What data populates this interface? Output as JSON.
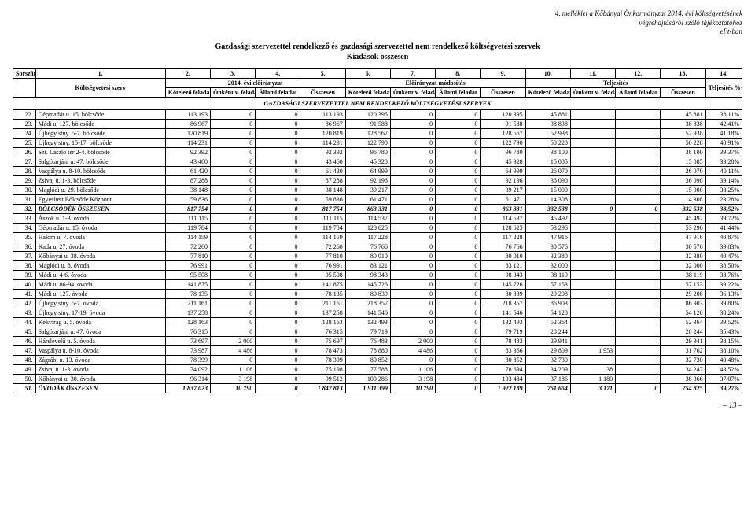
{
  "header": {
    "topRight1": "4. melléklet a Kőbányai Önkormányzat 2014. évi költségvetésének",
    "topRight2": "végrehajtásáról szóló tájékoztatóhoz",
    "topRight3": "eFt-ban",
    "title1": "Gazdasági szervezettel rendelkező és gazdasági szervezettel nem rendelkező költségvetési szervek",
    "title2": "Kiadások összesen"
  },
  "colHeaders": {
    "sorszam": "Sorszám",
    "szerv": "Költségvetési szerv",
    "group1": "2014. évi előirányzat",
    "group2": "Előirányzat módosítás",
    "group3": "Teljesítés",
    "kotelezo": "Kötelező feladat",
    "onkent": "Önként v. feladat",
    "allami": "Állami feladat",
    "osszesen": "Összesen",
    "teljPct": "Teljesítés %-a",
    "nums": [
      "1.",
      "2.",
      "3.",
      "4.",
      "5.",
      "6.",
      "7.",
      "8.",
      "9.",
      "10.",
      "11.",
      "12.",
      "13.",
      "14."
    ]
  },
  "sectionTitle": "GAZDASÁGI SZERVEZETTEL NEM RENDELKEZŐ KÖLTSÉGVETÉSI SZERVEK",
  "rows": [
    {
      "idx": "22.",
      "name": "Gépmadár u. 15. bölcsőde",
      "c": [
        "113 193",
        "0",
        "0",
        "113 193",
        "120 395",
        "0",
        "0",
        "120 395",
        "45 881",
        "",
        "",
        "45 881",
        "38,11%"
      ]
    },
    {
      "idx": "23.",
      "name": "Mádi u. 127. bölcsőde",
      "c": [
        "86 967",
        "0",
        "0",
        "86 967",
        "91 588",
        "0",
        "0",
        "91 588",
        "38 838",
        "",
        "",
        "38 838",
        "42,41%"
      ]
    },
    {
      "idx": "24.",
      "name": "Újhegy stny. 5-7. bölcsőde",
      "c": [
        "120 819",
        "0",
        "0",
        "120 819",
        "128 567",
        "0",
        "0",
        "128 567",
        "52 938",
        "",
        "",
        "52 938",
        "41,18%"
      ]
    },
    {
      "idx": "25.",
      "name": "Újhegy stny. 15-17. bölcsőde",
      "c": [
        "114 231",
        "0",
        "0",
        "114 231",
        "122 790",
        "0",
        "0",
        "122 790",
        "50 228",
        "",
        "",
        "50 228",
        "40,91%"
      ]
    },
    {
      "idx": "26.",
      "name": "Szt. László tér 2-4. bölcsőde",
      "c": [
        "92 392",
        "0",
        "0",
        "92 392",
        "96 780",
        "0",
        "0",
        "96 780",
        "38 100",
        "",
        "",
        "38 100",
        "39,37%"
      ]
    },
    {
      "idx": "27.",
      "name": "Salgótarjáni u. 47. bölcsőde",
      "c": [
        "43 460",
        "0",
        "0",
        "43 460",
        "45 328",
        "0",
        "0",
        "45 328",
        "15 085",
        "",
        "",
        "15 085",
        "33,28%"
      ]
    },
    {
      "idx": "28.",
      "name": "Vaspálya u. 8-10. bölcsőde",
      "c": [
        "61 420",
        "0",
        "0",
        "61 420",
        "64 999",
        "0",
        "0",
        "64 999",
        "26 070",
        "",
        "",
        "26 070",
        "40,11%"
      ]
    },
    {
      "idx": "29.",
      "name": "Zsivaj u. 1-3. bölcsőde",
      "c": [
        "87 288",
        "0",
        "0",
        "87 288",
        "92 196",
        "0",
        "0",
        "92 196",
        "36 090",
        "",
        "",
        "36 090",
        "39,14%"
      ]
    },
    {
      "idx": "30.",
      "name": "Maglódi u. 29. bölcsőde",
      "c": [
        "38 148",
        "0",
        "0",
        "38 148",
        "39 217",
        "0",
        "0",
        "39 217",
        "15 000",
        "",
        "",
        "15 000",
        "38,25%"
      ]
    },
    {
      "idx": "31.",
      "name": "Egyesített Bölcsőde Központ",
      "c": [
        "59 836",
        "0",
        "0",
        "59 836",
        "61 471",
        "0",
        "0",
        "61 471",
        "14 308",
        "",
        "",
        "14 308",
        "23,28%"
      ]
    },
    {
      "idx": "32.",
      "name": "BÖLCSŐDÉK ÖSSZESEN",
      "bold": true,
      "c": [
        "817 754",
        "0",
        "0",
        "817 754",
        "863 331",
        "0",
        "0",
        "863 331",
        "332 538",
        "0",
        "0",
        "332 538",
        "38,52%"
      ]
    },
    {
      "idx": "33.",
      "name": "Ászok u. 1-3. óvoda",
      "c": [
        "111 115",
        "0",
        "0",
        "111 115",
        "114 537",
        "0",
        "0",
        "114 537",
        "45 492",
        "",
        "",
        "45 492",
        "39,72%"
      ]
    },
    {
      "idx": "34.",
      "name": "Gépmadár u. 15. óvoda",
      "c": [
        "119 784",
        "0",
        "0",
        "119 784",
        "128 625",
        "0",
        "0",
        "128 625",
        "53 296",
        "",
        "",
        "53 296",
        "41,44%"
      ]
    },
    {
      "idx": "35.",
      "name": "Halom u. 7. óvoda",
      "c": [
        "114 159",
        "0",
        "0",
        "114 159",
        "117 228",
        "0",
        "0",
        "117 228",
        "47 916",
        "",
        "",
        "47 916",
        "40,87%"
      ]
    },
    {
      "idx": "36.",
      "name": "Kada u. 27. óvoda",
      "c": [
        "72 260",
        "0",
        "0",
        "72 260",
        "76 766",
        "0",
        "0",
        "76 766",
        "30 576",
        "",
        "",
        "30 576",
        "39,83%"
      ]
    },
    {
      "idx": "37.",
      "name": "Kőbányai u. 38. óvoda",
      "c": [
        "77 810",
        "0",
        "0",
        "77 810",
        "80 010",
        "0",
        "0",
        "80 010",
        "32 380",
        "",
        "",
        "32 380",
        "40,47%"
      ]
    },
    {
      "idx": "38.",
      "name": "Maglódi u. 8. óvoda",
      "c": [
        "76 991",
        "0",
        "0",
        "76 991",
        "83 121",
        "0",
        "0",
        "83 121",
        "32 000",
        "",
        "",
        "32 000",
        "38,50%"
      ]
    },
    {
      "idx": "39.",
      "name": "Mádi u. 4-6. óvoda",
      "c": [
        "95 508",
        "0",
        "0",
        "95 508",
        "98 343",
        "0",
        "0",
        "98 343",
        "38 119",
        "",
        "",
        "38 119",
        "38,76%"
      ]
    },
    {
      "idx": "40.",
      "name": "Mádi u. 86-94. óvoda",
      "c": [
        "141 875",
        "0",
        "0",
        "141 875",
        "145 726",
        "0",
        "0",
        "145 726",
        "57 153",
        "",
        "",
        "57 153",
        "39,22%"
      ]
    },
    {
      "idx": "41.",
      "name": "Mádi u. 127. óvoda",
      "c": [
        "78 135",
        "0",
        "0",
        "78 135",
        "80 839",
        "0",
        "0",
        "80 839",
        "29 208",
        "",
        "",
        "29 208",
        "36,13%"
      ]
    },
    {
      "idx": "42.",
      "name": "Újhegy stny. 5-7. óvoda",
      "c": [
        "211 161",
        "0",
        "0",
        "211 161",
        "218 357",
        "0",
        "0",
        "218 357",
        "86 903",
        "",
        "",
        "86 903",
        "39,80%"
      ]
    },
    {
      "idx": "43.",
      "name": "Újhegy stny. 17-19. óvoda",
      "c": [
        "137 258",
        "0",
        "0",
        "137 258",
        "141 546",
        "0",
        "0",
        "141 546",
        "54 128",
        "",
        "",
        "54 128",
        "38,24%"
      ]
    },
    {
      "idx": "44.",
      "name": "Kékvirág u. 5. óvoda",
      "c": [
        "128 163",
        "0",
        "0",
        "128 163",
        "132 493",
        "0",
        "0",
        "132 493",
        "52 364",
        "",
        "",
        "52 364",
        "39,52%"
      ]
    },
    {
      "idx": "45.",
      "name": "Salgótarjáni u. 47. óvoda",
      "c": [
        "76 315",
        "0",
        "0",
        "76 315",
        "79 719",
        "0",
        "0",
        "79 719",
        "28 244",
        "",
        "",
        "28 244",
        "35,43%"
      ]
    },
    {
      "idx": "46.",
      "name": "Hárslevelű u. 5. óvoda",
      "c": [
        "73 697",
        "2 000",
        "0",
        "75 697",
        "76 483",
        "2 000",
        "0",
        "78 483",
        "29 941",
        "",
        "",
        "29 941",
        "38,15%"
      ]
    },
    {
      "idx": "47.",
      "name": "Vaspálya u. 8-10. óvoda",
      "c": [
        "73 987",
        "4 486",
        "0",
        "78 473",
        "78 880",
        "4 486",
        "0",
        "83 366",
        "29 809",
        "1 953",
        "",
        "31 762",
        "38,10%"
      ]
    },
    {
      "idx": "48.",
      "name": "Zágrábi u. 13. óvoda",
      "c": [
        "78 399",
        "0",
        "0",
        "78 399",
        "80 852",
        "0",
        "0",
        "80 852",
        "32 730",
        "",
        "",
        "32 730",
        "40,48%"
      ]
    },
    {
      "idx": "49.",
      "name": "Zsivaj u. 1-3. óvoda",
      "c": [
        "74 092",
        "1 106",
        "0",
        "75 198",
        "77 588",
        "1 106",
        "0",
        "78 694",
        "34 209",
        "38",
        "",
        "34 247",
        "43,52%"
      ]
    },
    {
      "idx": "50.",
      "name": "Kőbányai u. 30. óvoda",
      "c": [
        "96 314",
        "3 198",
        "0",
        "99 512",
        "100 286",
        "3 198",
        "0",
        "103 484",
        "37 186",
        "1 180",
        "",
        "38 366",
        "37,07%"
      ]
    },
    {
      "idx": "51.",
      "name": "ÓVODÁK ÖSSZESEN",
      "bold": true,
      "c": [
        "1 837 023",
        "10 790",
        "0",
        "1 847 813",
        "1 911 399",
        "10 790",
        "0",
        "1 922 189",
        "751 654",
        "3 171",
        "0",
        "754 825",
        "39,27%"
      ]
    }
  ],
  "footer": {
    "pageNum": "– 13 –"
  }
}
